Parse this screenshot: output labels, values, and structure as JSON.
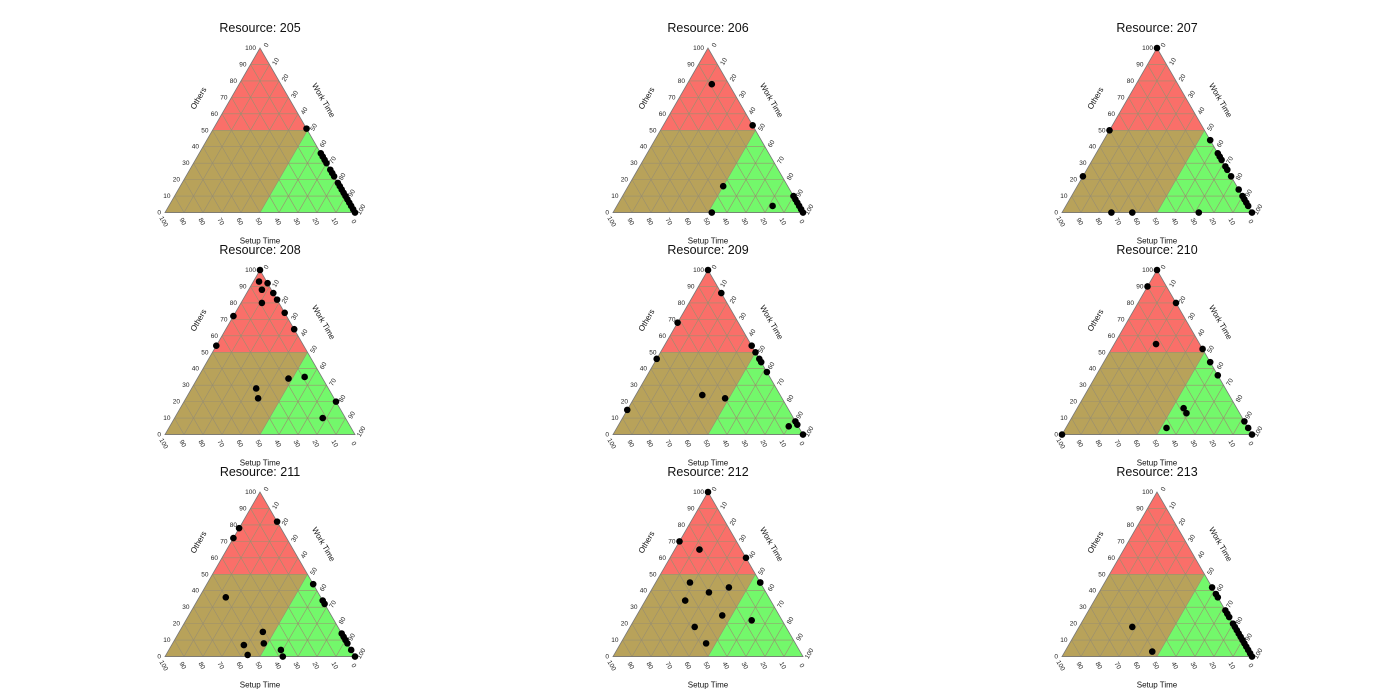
{
  "figure": {
    "axis_labels": {
      "bottom": "Setup Time",
      "left": "Others",
      "right": "Work Time"
    },
    "tick_labels": [
      "0",
      "10",
      "20",
      "30",
      "40",
      "50",
      "60",
      "70",
      "80",
      "90",
      "100"
    ],
    "colors": {
      "red": "#ff6a6a",
      "olive": "#b8a25a",
      "green": "#6dff6d",
      "grid": "#9a8f70",
      "point": "#000000"
    }
  },
  "chart_data": [
    {
      "type": "scatter",
      "subtype": "ternary",
      "title": "Resource: 205",
      "axes": [
        "Setup Time",
        "Work Time",
        "Others"
      ],
      "points": [
        [
          0,
          49,
          51
        ],
        [
          0,
          64,
          36
        ],
        [
          0,
          66,
          34
        ],
        [
          0,
          68,
          32
        ],
        [
          0,
          70,
          30
        ],
        [
          0,
          74,
          26
        ],
        [
          0,
          76,
          24
        ],
        [
          0,
          78,
          22
        ],
        [
          0,
          82,
          18
        ],
        [
          0,
          84,
          16
        ],
        [
          0,
          86,
          14
        ],
        [
          0,
          88,
          12
        ],
        [
          0,
          90,
          10
        ],
        [
          0,
          92,
          8
        ],
        [
          0,
          94,
          6
        ],
        [
          0,
          96,
          4
        ],
        [
          0,
          98,
          2
        ],
        [
          0,
          100,
          0
        ]
      ]
    },
    {
      "type": "scatter",
      "subtype": "ternary",
      "title": "Resource: 206",
      "axes": [
        "Setup Time",
        "Work Time",
        "Others"
      ],
      "points": [
        [
          9,
          13,
          78
        ],
        [
          0,
          47,
          53
        ],
        [
          34,
          50,
          16
        ],
        [
          48,
          52,
          0
        ],
        [
          0,
          90,
          10
        ],
        [
          0,
          92,
          8
        ],
        [
          0,
          94,
          6
        ],
        [
          0,
          96,
          4
        ],
        [
          0,
          98,
          2
        ],
        [
          0,
          100,
          0
        ],
        [
          14,
          82,
          4
        ]
      ]
    },
    {
      "type": "scatter",
      "subtype": "ternary",
      "title": "Resource: 207",
      "axes": [
        "Setup Time",
        "Work Time",
        "Others"
      ],
      "points": [
        [
          0,
          0,
          100
        ],
        [
          50,
          0,
          50
        ],
        [
          78,
          0,
          22
        ],
        [
          74,
          26,
          0
        ],
        [
          63,
          37,
          0
        ],
        [
          28,
          72,
          0
        ],
        [
          0,
          56,
          44
        ],
        [
          0,
          64,
          36
        ],
        [
          0,
          66,
          34
        ],
        [
          0,
          68,
          32
        ],
        [
          0,
          72,
          28
        ],
        [
          0,
          74,
          26
        ],
        [
          0,
          78,
          22
        ],
        [
          0,
          86,
          14
        ],
        [
          0,
          90,
          10
        ],
        [
          0,
          92,
          8
        ],
        [
          0,
          94,
          6
        ],
        [
          0,
          96,
          4
        ],
        [
          0,
          100,
          0
        ]
      ]
    },
    {
      "type": "scatter",
      "subtype": "ternary",
      "title": "Resource: 208",
      "axes": [
        "Setup Time",
        "Work Time",
        "Others"
      ],
      "points": [
        [
          0,
          0,
          100
        ],
        [
          4,
          3,
          93
        ],
        [
          0,
          8,
          92
        ],
        [
          5,
          7,
          88
        ],
        [
          0,
          14,
          86
        ],
        [
          9,
          11,
          80
        ],
        [
          0,
          18,
          82
        ],
        [
          0,
          26,
          74
        ],
        [
          28,
          0,
          72
        ],
        [
          0,
          36,
          64
        ],
        [
          46,
          0,
          54
        ],
        [
          38,
          34,
          28
        ],
        [
          40,
          38,
          22
        ],
        [
          18,
          48,
          34
        ],
        [
          9,
          56,
          35
        ],
        [
          12,
          78,
          10
        ],
        [
          0,
          80,
          20
        ]
      ]
    },
    {
      "type": "scatter",
      "subtype": "ternary",
      "title": "Resource: 209",
      "axes": [
        "Setup Time",
        "Work Time",
        "Others"
      ],
      "points": [
        [
          0,
          0,
          100
        ],
        [
          0,
          14,
          86
        ],
        [
          32,
          0,
          68
        ],
        [
          54,
          0,
          46
        ],
        [
          85,
          0,
          15
        ],
        [
          0,
          46,
          54
        ],
        [
          0,
          50,
          50
        ],
        [
          0,
          54,
          46
        ],
        [
          0,
          56,
          44
        ],
        [
          0,
          62,
          38
        ],
        [
          41,
          35,
          24
        ],
        [
          30,
          48,
          22
        ],
        [
          0,
          92,
          8
        ],
        [
          0,
          94,
          6
        ],
        [
          5,
          90,
          5
        ],
        [
          0,
          100,
          0
        ]
      ]
    },
    {
      "type": "scatter",
      "subtype": "ternary",
      "title": "Resource: 210",
      "axes": [
        "Setup Time",
        "Work Time",
        "Others"
      ],
      "points": [
        [
          0,
          0,
          100
        ],
        [
          10,
          0,
          90
        ],
        [
          0,
          20,
          80
        ],
        [
          23,
          22,
          55
        ],
        [
          0,
          48,
          52
        ],
        [
          0,
          56,
          44
        ],
        [
          0,
          64,
          36
        ],
        [
          28,
          56,
          16
        ],
        [
          28,
          59,
          13
        ],
        [
          43,
          53,
          4
        ],
        [
          0,
          92,
          8
        ],
        [
          0,
          96,
          4
        ],
        [
          0,
          100,
          0
        ],
        [
          100,
          0,
          0
        ]
      ]
    },
    {
      "type": "scatter",
      "subtype": "ternary",
      "title": "Resource: 211",
      "axes": [
        "Setup Time",
        "Work Time",
        "Others"
      ],
      "points": [
        [
          22,
          0,
          78
        ],
        [
          28,
          0,
          72
        ],
        [
          0,
          18,
          82
        ],
        [
          50,
          14,
          36
        ],
        [
          41,
          44,
          15
        ],
        [
          55,
          38,
          7
        ],
        [
          44,
          48,
          8
        ],
        [
          56,
          43,
          1
        ],
        [
          0,
          56,
          44
        ],
        [
          0,
          66,
          34
        ],
        [
          0,
          68,
          32
        ],
        [
          0,
          86,
          14
        ],
        [
          0,
          88,
          12
        ],
        [
          0,
          90,
          10
        ],
        [
          0,
          92,
          8
        ],
        [
          0,
          96,
          4
        ],
        [
          38,
          62,
          0
        ],
        [
          37,
          59,
          4
        ],
        [
          0,
          100,
          0
        ]
      ]
    },
    {
      "type": "scatter",
      "subtype": "ternary",
      "title": "Resource: 212",
      "axes": [
        "Setup Time",
        "Work Time",
        "Others"
      ],
      "points": [
        [
          0,
          0,
          100
        ],
        [
          30,
          0,
          70
        ],
        [
          22,
          13,
          65
        ],
        [
          0,
          40,
          60
        ],
        [
          37,
          18,
          45
        ],
        [
          30,
          31,
          39
        ],
        [
          45,
          21,
          34
        ],
        [
          18,
          40,
          42
        ],
        [
          0,
          55,
          45
        ],
        [
          0,
          55,
          45
        ],
        [
          30,
          45,
          25
        ],
        [
          48,
          34,
          18
        ],
        [
          16,
          62,
          22
        ],
        [
          47,
          45,
          8
        ]
      ]
    },
    {
      "type": "scatter",
      "subtype": "ternary",
      "title": "Resource: 213",
      "axes": [
        "Setup Time",
        "Work Time",
        "Others"
      ],
      "points": [
        [
          0,
          58,
          42
        ],
        [
          0,
          62,
          38
        ],
        [
          0,
          64,
          36
        ],
        [
          0,
          72,
          28
        ],
        [
          0,
          74,
          26
        ],
        [
          0,
          76,
          24
        ],
        [
          0,
          80,
          20
        ],
        [
          0,
          82,
          18
        ],
        [
          0,
          84,
          16
        ],
        [
          0,
          86,
          14
        ],
        [
          0,
          88,
          12
        ],
        [
          0,
          90,
          10
        ],
        [
          0,
          92,
          8
        ],
        [
          0,
          94,
          6
        ],
        [
          0,
          96,
          4
        ],
        [
          0,
          98,
          2
        ],
        [
          0,
          100,
          0
        ],
        [
          54,
          28,
          18
        ],
        [
          51,
          46,
          3
        ]
      ]
    }
  ]
}
